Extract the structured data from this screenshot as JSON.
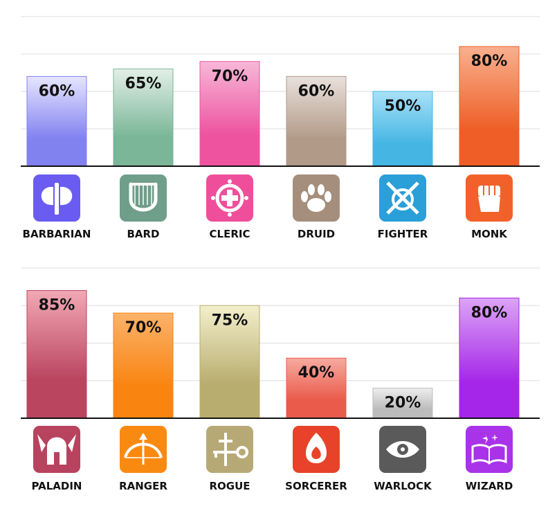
{
  "chart_data": [
    {
      "type": "bar",
      "title": "",
      "xlabel": "",
      "ylabel": "",
      "ylim": [
        0,
        100
      ],
      "grid": true,
      "categories": [
        "BARBARIAN",
        "BARD",
        "CLERIC",
        "DRUID",
        "FIGHTER",
        "MONK"
      ],
      "values": [
        60,
        65,
        70,
        60,
        50,
        80
      ],
      "value_labels": [
        "60%",
        "65%",
        "70%",
        "60%",
        "50%",
        "80%"
      ],
      "icons": [
        "double-axe-icon",
        "lyre-icon",
        "holy-symbol-icon",
        "paw-icon",
        "crossed-swords-shield-icon",
        "fist-icon"
      ],
      "icon_colors": [
        "#6a5cf0",
        "#6f9e8a",
        "#ef4f9a",
        "#a58e7c",
        "#2a9fd8",
        "#f2612a"
      ],
      "bar_colors": [
        [
          "#e6e6ff",
          "#8181f0"
        ],
        [
          "#e3efe8",
          "#7ab697"
        ],
        [
          "#f7b8d8",
          "#ee53a0"
        ],
        [
          "#e9e1dc",
          "#b29a88"
        ],
        [
          "#a9e1f7",
          "#45b6e4"
        ],
        [
          "#f9b08e",
          "#ee5e26"
        ]
      ]
    },
    {
      "type": "bar",
      "title": "",
      "xlabel": "",
      "ylabel": "",
      "ylim": [
        0,
        100
      ],
      "grid": true,
      "categories": [
        "PALADIN",
        "RANGER",
        "ROGUE",
        "SORCERER",
        "WARLOCK",
        "WIZARD"
      ],
      "values": [
        85,
        70,
        75,
        40,
        20,
        80
      ],
      "value_labels": [
        "85%",
        "70%",
        "75%",
        "40%",
        "20%",
        "80%"
      ],
      "icons": [
        "winged-helmet-icon",
        "bow-arrow-icon",
        "key-dagger-icon",
        "flame-icon",
        "eye-icon",
        "spellbook-icon"
      ],
      "icon_colors": [
        "#b8435f",
        "#f88a12",
        "#b7a975",
        "#e8432a",
        "#5a5a5a",
        "#a933e8"
      ],
      "bar_colors": [
        [
          "#f2a8b5",
          "#b9455f"
        ],
        [
          "#fbb26a",
          "#fa8410"
        ],
        [
          "#f3efcc",
          "#b8ad6e"
        ],
        [
          "#f7aaa0",
          "#ea5b4c"
        ],
        [
          "#eeeeee",
          "#bcbcbc"
        ],
        [
          "#dca4f7",
          "#a526e8"
        ]
      ]
    }
  ]
}
